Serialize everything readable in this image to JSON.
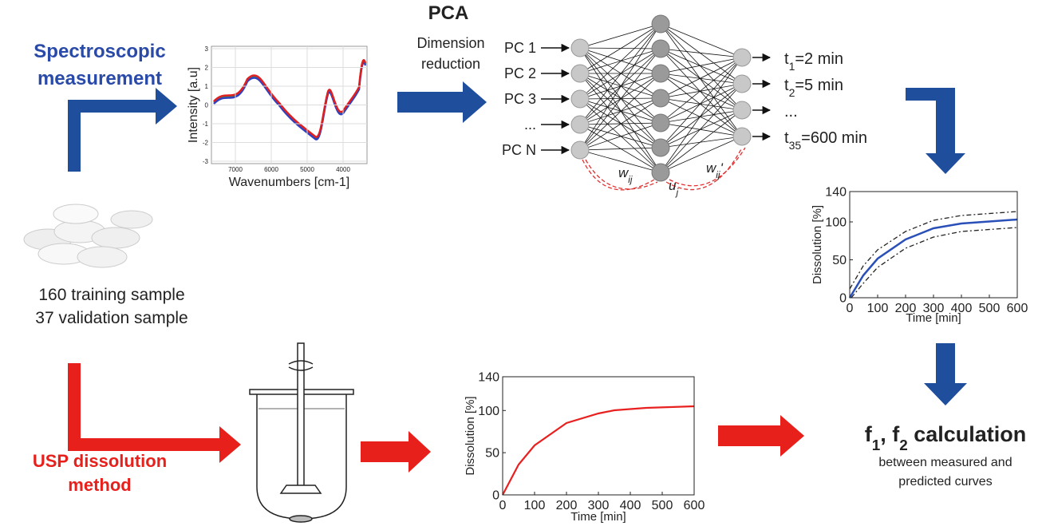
{
  "spectroscopic": {
    "lines": [
      "Spectroscopic",
      "measurement"
    ]
  },
  "tablets": {
    "lines": [
      "160 training sample",
      "37 validation sample"
    ]
  },
  "usp": {
    "lines": [
      "USP dissolution",
      "method"
    ]
  },
  "pca": {
    "title": "PCA",
    "lines": [
      "Dimension",
      "reduction"
    ]
  },
  "spectrum": {
    "ylabel": "Intensity [a.u]",
    "xlabel": "Wavenumbers [cm-1]",
    "xticks": [
      7000,
      6000,
      5000,
      4000
    ],
    "yticks": [
      3,
      2,
      1,
      0,
      -1,
      -2,
      -3
    ]
  },
  "network": {
    "inputs": [
      "PC 1",
      "PC 2",
      "PC 3",
      "...",
      "PC N"
    ],
    "weights": [
      {
        "parts": [
          {
            "base": "w",
            "sub": "ij"
          }
        ]
      },
      {
        "parts": [
          {
            "base": "u",
            "sub": "j"
          }
        ]
      },
      {
        "parts": [
          {
            "base": "w",
            "sub": "ij",
            "text": "'"
          }
        ]
      }
    ],
    "outputs": [
      {
        "parts": [
          {
            "base": "t",
            "sub": "1",
            "text": "=2 min"
          }
        ]
      },
      {
        "parts": [
          {
            "base": "t",
            "sub": "2",
            "text": "=5 min"
          }
        ]
      },
      {
        "parts": [
          {
            "text": "..."
          }
        ]
      },
      {
        "parts": [
          {
            "base": "t",
            "sub": "35",
            "text": "=600 min"
          }
        ]
      }
    ]
  },
  "predicted_plot": {
    "ylabel": "Dissolution [%]",
    "xlabel": "Time [min]",
    "xticks": [
      0,
      100,
      200,
      300,
      400,
      500,
      600
    ],
    "yticks": [
      0,
      50,
      100,
      140
    ]
  },
  "measured_plot": {
    "ylabel": "Dissolution [%]",
    "xlabel": "Time [min]",
    "xticks": [
      0,
      100,
      200,
      300,
      400,
      500,
      600
    ],
    "yticks": [
      0,
      50,
      100,
      140
    ]
  },
  "result": {
    "title": {
      "parts": [
        {
          "base": "f",
          "sub": "1"
        },
        {
          "base": ", f",
          "sub": "2"
        },
        {
          "text": " calculation"
        }
      ]
    },
    "lines": [
      "between measured and",
      "predicted curves"
    ]
  }
}
